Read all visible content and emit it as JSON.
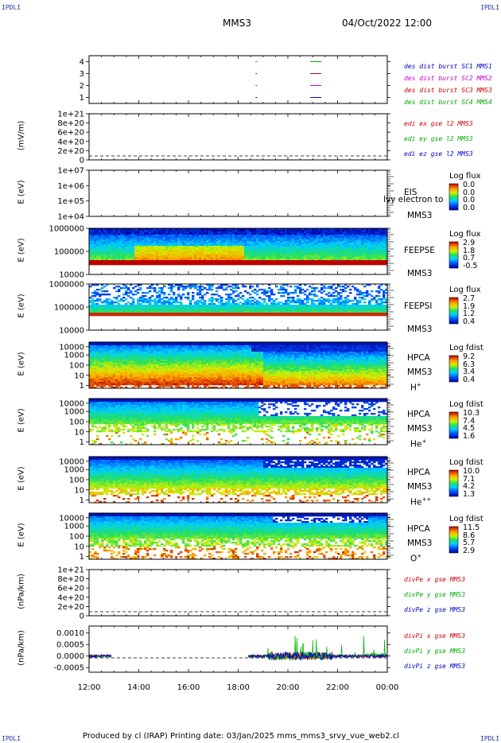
{
  "header": {
    "corner_label": "IPDLI",
    "spacecraft": "MMS3",
    "datetime": "04/Oct/2022 12:00"
  },
  "x_axis": {
    "ticks": [
      "12:00",
      "14:00",
      "16:00",
      "18:00",
      "20:00",
      "22:00",
      "00:00"
    ],
    "range_hours": [
      12,
      24
    ]
  },
  "panels": [
    {
      "id": "burst",
      "ylabel": "",
      "yticks": [
        "4",
        "3",
        "2",
        "1"
      ],
      "legend": [
        {
          "text": "des dist burst SC1 MMS1",
          "color": "#0000cc"
        },
        {
          "text": "des dist burst SC2 MMS2",
          "color": "#cc00cc"
        },
        {
          "text": "des dist burst SC3 MMS3",
          "color": "#cc0000"
        },
        {
          "text": "des dist burst SC4 MMS4",
          "color": "#00aa00"
        }
      ]
    },
    {
      "id": "edi",
      "ylabel": "(mV/m)",
      "yticks": [
        "1e+21",
        "8e+20",
        "6e+20",
        "4e+20",
        "2e+20",
        "0"
      ],
      "legend": [
        {
          "text": "edi ex gse l2 MMS3",
          "color": "#cc0000"
        },
        {
          "text": "edi ey gse l2 MMS3",
          "color": "#00aa00"
        },
        {
          "text": "edi ez gse l2 MMS3",
          "color": "#0000cc"
        }
      ]
    },
    {
      "id": "eis",
      "ylabel": "E (eV)",
      "yticks": [
        "1e+07",
        "1e+06",
        "1e+05",
        "1e+04"
      ],
      "side": [
        "EIS",
        "MMS3"
      ],
      "overlay": "lvy electron to",
      "cbar": {
        "title": "Log flux",
        "values": [
          "0.0",
          "0.0",
          "0.0",
          "0.0"
        ]
      }
    },
    {
      "id": "feepse",
      "ylabel": "E (eV)",
      "yticks": [
        "1000000",
        "100000",
        "10000"
      ],
      "side": [
        "FEEPSE",
        "MMS3"
      ],
      "cbar": {
        "title": "Log flux",
        "values": [
          "2.9",
          "1.8",
          "0.7",
          "-0.5"
        ]
      }
    },
    {
      "id": "feepsi",
      "ylabel": "E (eV)",
      "yticks": [
        "1000000",
        "100000",
        "10000"
      ],
      "side": [
        "FEEPSI",
        "MMS3"
      ],
      "cbar": {
        "title": "Log flux",
        "values": [
          "2.7",
          "1.9",
          "1.2",
          "0.4"
        ]
      }
    },
    {
      "id": "hpca_h",
      "ylabel": "E (eV)",
      "yticks": [
        "10000",
        "1000",
        "100",
        "10",
        "1"
      ],
      "side": [
        "HPCA",
        "MMS3"
      ],
      "species": "H",
      "species_sup": "+",
      "cbar": {
        "title": "Log fdist",
        "values": [
          "9.2",
          "6.3",
          "3.4",
          "0.4"
        ]
      }
    },
    {
      "id": "hpca_he",
      "ylabel": "E (eV)",
      "yticks": [
        "10000",
        "1000",
        "100",
        "10",
        "1"
      ],
      "side": [
        "HPCA",
        "MMS3"
      ],
      "species": "He",
      "species_sup": "+",
      "cbar": {
        "title": "Log fdist",
        "values": [
          "10.3",
          "7.4",
          "4.5",
          "1.6"
        ]
      }
    },
    {
      "id": "hpca_hepp",
      "ylabel": "E (eV)",
      "yticks": [
        "10000",
        "1000",
        "100",
        "10",
        "1"
      ],
      "side": [
        "HPCA",
        "MMS3"
      ],
      "species": "He",
      "species_sup": "++",
      "cbar": {
        "title": "Log fdist",
        "values": [
          "10.0",
          "7.1",
          "4.2",
          "1.3"
        ]
      }
    },
    {
      "id": "hpca_o",
      "ylabel": "E (eV)",
      "yticks": [
        "10000",
        "1000",
        "100",
        "10",
        "1"
      ],
      "side": [
        "HPCA",
        "MMS3"
      ],
      "species": "O",
      "species_sup": "+",
      "cbar": {
        "title": "Log fdist",
        "values": [
          "11.5",
          "8.6",
          "5.7",
          "2.9"
        ]
      }
    },
    {
      "id": "divpe",
      "ylabel": "(nPa/km)",
      "yticks": [
        "1e+21",
        "8e+20",
        "6e+20",
        "4e+20",
        "2e+20",
        "0"
      ],
      "legend": [
        {
          "text": "divPe x gse MMS3",
          "color": "#cc0000"
        },
        {
          "text": "divPe y gse MMS3",
          "color": "#00aa00"
        },
        {
          "text": "divPe z gse MMS3",
          "color": "#0000cc"
        }
      ]
    },
    {
      "id": "divpi",
      "ylabel": "(nPa/km)",
      "yticks": [
        "0.0010",
        "0.0005",
        "0.0000",
        "-0.0005"
      ],
      "legend": [
        {
          "text": "divPi x gse MMS3",
          "color": "#cc0000"
        },
        {
          "text": "divPi y gse MMS3",
          "color": "#00aa00"
        },
        {
          "text": "divPi z gse MMS3",
          "color": "#0000cc"
        }
      ]
    }
  ],
  "footer": "Produced by cl (IRAP)   Printing date: 03/Jan/2025   mms_mms3_srvy_vue_web2.cl",
  "chart_data": [
    {
      "type": "scatter",
      "panel": "burst",
      "x_unit": "hour",
      "xlim": [
        12,
        24
      ],
      "ylim": [
        0.5,
        4.5
      ],
      "series": [
        {
          "name": "des dist burst SC1 MMS1",
          "y": 1,
          "x": [
            18.7,
            20.9,
            21.3
          ]
        },
        {
          "name": "des dist burst SC2 MMS2",
          "y": 2,
          "x": [
            18.7,
            20.9,
            21.3
          ]
        },
        {
          "name": "des dist burst SC3 MMS3",
          "y": 3,
          "x": [
            18.7,
            20.9,
            21.3
          ]
        },
        {
          "name": "des dist burst SC4 MMS4",
          "y": 4,
          "x": [
            18.7,
            20.9,
            21.3
          ]
        }
      ]
    },
    {
      "type": "line",
      "panel": "edi",
      "ylim": [
        0,
        1e+21
      ],
      "series": []
    },
    {
      "type": "heatmap",
      "panel": "eis",
      "ylim_eV": [
        10000.0,
        10000000.0
      ],
      "values": []
    },
    {
      "type": "heatmap",
      "panel": "feepse",
      "ylim_eV": [
        10000.0,
        1000000.0
      ],
      "clim": [
        -0.5,
        2.9
      ]
    },
    {
      "type": "heatmap",
      "panel": "feepsi",
      "ylim_eV": [
        10000.0,
        1000000.0
      ],
      "clim": [
        0.4,
        2.7
      ]
    },
    {
      "type": "heatmap",
      "panel": "hpca_h",
      "ylim_eV": [
        1,
        30000
      ],
      "clim": [
        0.4,
        9.2
      ]
    },
    {
      "type": "heatmap",
      "panel": "hpca_he",
      "ylim_eV": [
        1,
        30000
      ],
      "clim": [
        1.6,
        10.3
      ]
    },
    {
      "type": "heatmap",
      "panel": "hpca_hepp",
      "ylim_eV": [
        1,
        30000
      ],
      "clim": [
        1.3,
        10.0
      ]
    },
    {
      "type": "heatmap",
      "panel": "hpca_o",
      "ylim_eV": [
        1,
        30000
      ],
      "clim": [
        2.9,
        11.5
      ]
    },
    {
      "type": "line",
      "panel": "divpe",
      "ylim": [
        0,
        1e+21
      ],
      "series": []
    },
    {
      "type": "line",
      "panel": "divpi",
      "ylim": [
        -0.0007,
        0.0013
      ],
      "data_intervals_hours": [
        [
          12.0,
          12.9
        ],
        [
          18.4,
          24.0
        ]
      ]
    }
  ]
}
